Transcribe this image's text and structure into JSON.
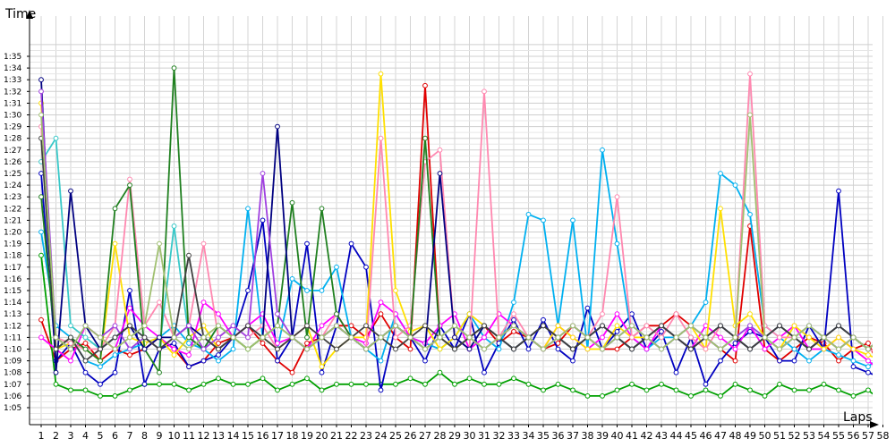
{
  "chart_data": {
    "type": "line",
    "title": "",
    "ylabel": "Time",
    "xlabel": "Laps",
    "x": [
      1,
      2,
      3,
      4,
      5,
      6,
      7,
      8,
      9,
      10,
      11,
      12,
      13,
      14,
      15,
      16,
      17,
      18,
      19,
      20,
      21,
      22,
      23,
      24,
      25,
      26,
      27,
      28,
      29,
      30,
      31,
      32,
      33,
      34,
      35,
      36,
      37,
      38,
      39,
      40,
      41,
      42,
      43,
      44,
      45,
      46,
      47,
      48,
      49,
      50,
      51,
      52,
      53,
      54,
      55,
      56,
      57,
      58
    ],
    "x_ticks": [
      "1",
      "2",
      "3",
      "4",
      "5",
      "6",
      "7",
      "8",
      "9",
      "10",
      "11",
      "12",
      "13",
      "14",
      "15",
      "16",
      "17",
      "18",
      "19",
      "20",
      "21",
      "22",
      "23",
      "24",
      "25",
      "26",
      "27",
      "28",
      "29",
      "30",
      "31",
      "32",
      "33",
      "34",
      "35",
      "36",
      "37",
      "38",
      "39",
      "40",
      "41",
      "42",
      "43",
      "44",
      "45",
      "46",
      "47",
      "48",
      "49",
      "50",
      "51",
      "52",
      "53",
      "54",
      "55",
      "56",
      "57",
      "58"
    ],
    "y_ticks": [
      "1:05",
      "1:06",
      "1:07",
      "1:08",
      "1:09",
      "1:10",
      "1:11",
      "1:12",
      "1:13",
      "1:14",
      "1:15",
      "1:16",
      "1:17",
      "1:18",
      "1:19",
      "1:20",
      "1:21",
      "1:22",
      "1:23",
      "1:24",
      "1:25",
      "1:26",
      "1:27",
      "1:28",
      "1:29",
      "1:30",
      "1:31",
      "1:32",
      "1:33",
      "1:34",
      "1:35"
    ],
    "y_unit": "seconds",
    "ylim": [
      64,
      95.5
    ],
    "xlim": [
      1,
      58
    ],
    "grid": true,
    "legend": "none",
    "series": [
      {
        "color": "#e00000",
        "values": [
          72.5,
          69,
          70,
          70.5,
          69,
          70,
          69.5,
          70,
          71,
          70,
          68.5,
          69,
          70.5,
          71,
          72,
          70.5,
          69,
          68,
          70.5,
          71,
          72,
          72,
          71,
          73,
          71,
          70,
          92.5,
          71,
          70,
          71,
          72,
          70.5,
          71.5,
          71,
          70,
          70.5,
          72,
          71,
          70,
          70,
          71,
          72,
          72,
          73,
          72,
          71,
          70,
          69,
          80.5,
          70,
          69,
          70,
          71,
          70.5,
          69,
          70,
          70.5,
          68
        ]
      },
      {
        "color": "#00a000",
        "values": [
          78,
          67,
          66.5,
          66.5,
          66,
          66,
          66.5,
          67,
          67,
          67,
          66.5,
          67,
          67.5,
          67,
          67,
          67.5,
          66.5,
          67,
          67.5,
          66.5,
          67,
          67,
          67,
          67,
          67,
          67.5,
          67,
          68,
          67,
          67.5,
          67,
          67,
          67.5,
          67,
          66.5,
          67,
          66.5,
          66,
          66,
          66.5,
          67,
          66.5,
          67,
          66.5,
          66,
          66.5,
          66,
          67,
          66.5,
          66,
          67,
          66.5,
          66.5,
          67,
          66.5,
          66,
          66.5,
          65.5
        ]
      },
      {
        "color": "#0000c0",
        "values": [
          85,
          69,
          70.5,
          68,
          67,
          68,
          75,
          67,
          70,
          70.5,
          68.5,
          69,
          69.5,
          71,
          75,
          81,
          69,
          71,
          79,
          68,
          72,
          79,
          77,
          66.5,
          72,
          71,
          69,
          72,
          70,
          73,
          68,
          70.5,
          72.5,
          70,
          72.5,
          70,
          69,
          73.5,
          70,
          71.5,
          73,
          70,
          71.5,
          68,
          71,
          67,
          69,
          70.5,
          71.5,
          71,
          69,
          69,
          72,
          70,
          83.5,
          68.5,
          68,
          67.5
        ]
      },
      {
        "color": "#00b0f0",
        "values": [
          80,
          72,
          71,
          69,
          68.5,
          69.5,
          70,
          70.5,
          71,
          72,
          70.5,
          70,
          69,
          70,
          82,
          71,
          70,
          76,
          75,
          75,
          77,
          71,
          70,
          69,
          73,
          71,
          70.5,
          70,
          71,
          73,
          71,
          70,
          74,
          81.5,
          81,
          72,
          81,
          70,
          87,
          79,
          71,
          70,
          71,
          71,
          72,
          74,
          85,
          84,
          81.5,
          72,
          71,
          70,
          69,
          70,
          69.5,
          69,
          68.5,
          69.5
        ]
      },
      {
        "color": "#ff00ff",
        "values": [
          71,
          70,
          69,
          72,
          71,
          70,
          73.5,
          72,
          71,
          70,
          69.5,
          74,
          73,
          71,
          72,
          73,
          70.5,
          71,
          70,
          72,
          73,
          71,
          70.5,
          74,
          73,
          71,
          70.5,
          72,
          73,
          70,
          71,
          73,
          72,
          71,
          70,
          72,
          71,
          70,
          71,
          73,
          71,
          70,
          72,
          71,
          70,
          72,
          71,
          70,
          72,
          70,
          71,
          72,
          70,
          70,
          71,
          70,
          69,
          68
        ]
      },
      {
        "color": "#ffe000",
        "values": [
          91,
          70,
          70.5,
          70,
          69,
          79,
          71,
          70.5,
          71,
          69.5,
          71,
          72,
          70,
          71,
          70,
          71,
          70,
          71,
          72,
          68.5,
          70,
          71,
          71,
          93.5,
          75,
          71.5,
          72,
          70,
          71,
          73,
          72,
          71,
          72,
          71,
          70,
          72,
          71,
          70,
          70,
          72,
          71,
          71,
          72,
          71,
          72,
          70,
          82,
          72,
          73,
          71,
          70,
          72,
          71,
          70,
          71,
          70,
          69.5,
          69
        ]
      },
      {
        "color": "#ff88b0",
        "values": [
          89,
          71,
          70.5,
          70,
          70,
          72,
          84.5,
          72,
          74,
          71,
          72,
          79,
          71,
          72,
          71,
          72,
          70,
          71,
          72,
          71,
          73,
          71,
          70,
          88,
          71,
          72,
          86,
          87,
          71,
          70,
          92,
          71,
          73,
          71,
          70,
          71,
          72,
          71,
          73,
          83,
          71,
          72,
          71,
          73,
          71,
          70,
          72,
          71,
          93.5,
          72,
          71,
          71,
          70,
          71,
          70,
          71,
          70,
          69.5
        ]
      },
      {
        "color": "#38c8c8",
        "values": [
          86,
          88,
          72,
          71,
          70,
          71,
          72,
          71,
          70,
          80.5,
          71,
          70,
          72,
          71,
          70,
          71,
          72,
          71,
          70,
          71,
          72,
          71,
          70,
          71,
          72,
          71,
          70,
          71,
          72,
          71,
          70,
          71,
          72,
          71,
          70,
          71,
          72,
          71,
          70,
          71,
          72,
          71,
          70,
          71,
          72,
          71,
          70,
          71,
          72,
          71,
          70,
          71,
          72,
          71,
          70,
          71,
          70,
          71
        ]
      },
      {
        "color": "#208020",
        "values": [
          83,
          70,
          71,
          70,
          69,
          82,
          84,
          70,
          68,
          94,
          71,
          70,
          72,
          71,
          70,
          71,
          72,
          82.5,
          71,
          82,
          73,
          71,
          70,
          71,
          72,
          71,
          88,
          71,
          70,
          71,
          72,
          71,
          70,
          71,
          72,
          71,
          70,
          71,
          72,
          71,
          70,
          71,
          72,
          71,
          70,
          71,
          72,
          71,
          70,
          71,
          72,
          71,
          70,
          71,
          72,
          71,
          70,
          71
        ]
      },
      {
        "color": "#000080",
        "values": [
          93,
          68,
          83.5,
          72,
          70,
          71,
          72,
          70,
          71,
          71,
          72,
          71,
          70,
          71,
          72,
          71,
          89,
          71,
          70,
          71,
          72,
          71,
          70,
          71,
          72,
          71,
          70,
          85,
          71,
          70,
          72,
          71,
          70,
          71,
          72,
          71,
          70,
          71,
          72,
          71,
          70,
          71,
          72,
          71,
          70,
          71,
          72,
          71,
          70,
          71,
          72,
          71,
          70,
          71,
          72,
          71,
          70,
          71
        ]
      },
      {
        "color": "#a040e0",
        "values": [
          92,
          71,
          70,
          72,
          71,
          72,
          70,
          71,
          70,
          71,
          72,
          70,
          71,
          72,
          71,
          85,
          73,
          71,
          70,
          71,
          72,
          71,
          70,
          71,
          72,
          71,
          70,
          71,
          72,
          71,
          70,
          71,
          72,
          71,
          70,
          71,
          72,
          71,
          70,
          71,
          72,
          71,
          70,
          71,
          72,
          71,
          70,
          71,
          72,
          71,
          70,
          71,
          72,
          71,
          70,
          71,
          70,
          71
        ]
      },
      {
        "color": "#404040",
        "values": [
          88,
          70,
          71,
          69,
          70,
          71,
          72,
          71,
          70,
          71,
          78,
          71,
          70,
          71,
          72,
          71,
          70,
          71,
          72,
          71,
          70,
          71,
          72,
          71,
          70,
          71,
          72,
          71,
          70,
          71,
          72,
          71,
          70,
          71,
          72,
          71,
          70,
          71,
          72,
          71,
          70,
          71,
          72,
          71,
          70,
          71,
          72,
          71,
          70,
          71,
          72,
          71,
          70,
          71,
          72,
          71,
          70,
          71
        ]
      },
      {
        "color": "#a0c070",
        "values": [
          90,
          71,
          70,
          72,
          71,
          70,
          71,
          72,
          79,
          71,
          70,
          71,
          72,
          71,
          70,
          71,
          72,
          71,
          70,
          71,
          72,
          71,
          70,
          71,
          72,
          71,
          70,
          71,
          72,
          71,
          70,
          71,
          72,
          71,
          70,
          71,
          72,
          71,
          70,
          71,
          72,
          71,
          70,
          71,
          72,
          71,
          70,
          71,
          90,
          71,
          70,
          71,
          72,
          71,
          70,
          71,
          70,
          71
        ]
      }
    ]
  }
}
